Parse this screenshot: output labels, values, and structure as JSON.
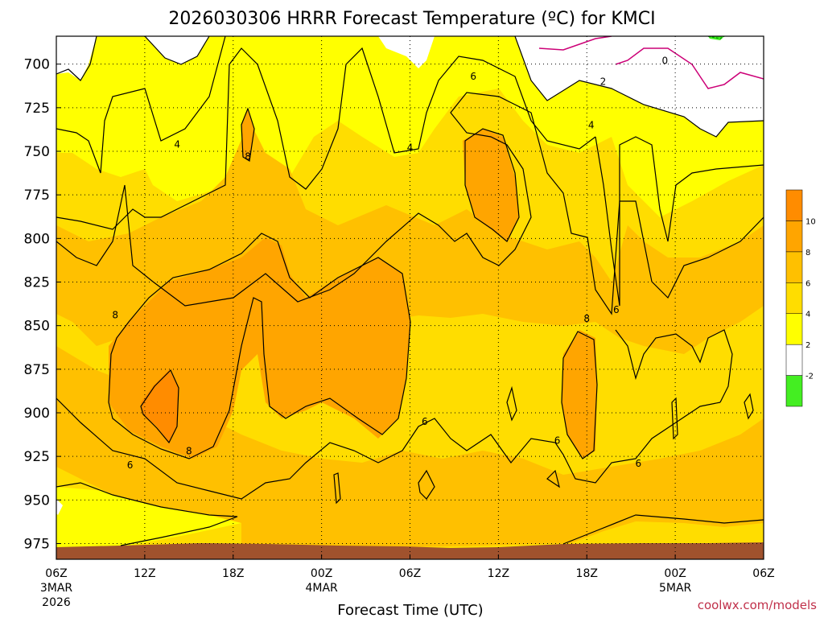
{
  "title": "2026030306 HRRR Forecast Temperature (ºC) for KMCI",
  "credit": "coolwx.com/models",
  "chart_data": {
    "type": "heatmap",
    "title": "2026030306 HRRR Forecast Temperature (ºC) for KMCI",
    "xlabel": "Forecast Time (UTC)",
    "ylabel": "",
    "y_axis": {
      "ticks": [
        700,
        725,
        750,
        775,
        800,
        825,
        850,
        875,
        900,
        925,
        950,
        975
      ],
      "range": [
        684,
        984
      ],
      "inverted": true
    },
    "x_axis": {
      "range_hours": [
        0,
        48
      ],
      "ticks": [
        {
          "hour": 0,
          "label": "06Z",
          "sub1": "3MAR",
          "sub2": "2026"
        },
        {
          "hour": 6,
          "label": "12Z",
          "sub1": "",
          "sub2": ""
        },
        {
          "hour": 12,
          "label": "18Z",
          "sub1": "",
          "sub2": ""
        },
        {
          "hour": 18,
          "label": "00Z",
          "sub1": "4MAR",
          "sub2": ""
        },
        {
          "hour": 24,
          "label": "06Z",
          "sub1": "",
          "sub2": ""
        },
        {
          "hour": 30,
          "label": "12Z",
          "sub1": "",
          "sub2": ""
        },
        {
          "hour": 36,
          "label": "18Z",
          "sub1": "",
          "sub2": ""
        },
        {
          "hour": 42,
          "label": "00Z",
          "sub1": "5MAR",
          "sub2": ""
        },
        {
          "hour": 48,
          "label": "06Z",
          "sub1": "",
          "sub2": ""
        }
      ]
    },
    "grid": true,
    "colorbar": {
      "placement": "right",
      "bins": [
        {
          "from": -4,
          "to": -2,
          "color": "#44ee22"
        },
        {
          "from": -2,
          "to": 2,
          "color": "#ffffff"
        },
        {
          "from": 2,
          "to": 4,
          "color": "#ffff00"
        },
        {
          "from": 4,
          "to": 6,
          "color": "#ffdd00"
        },
        {
          "from": 6,
          "to": 8,
          "color": "#ffc000"
        },
        {
          "from": 8,
          "to": 10,
          "color": "#ffa500"
        },
        {
          "from": 10,
          "to": 12,
          "color": "#ff8c00"
        }
      ],
      "tick_labels": [
        "-2",
        "2",
        "4",
        "6",
        "8",
        "10"
      ]
    },
    "contour_labels": [
      {
        "text": "0",
        "hour": 41.3,
        "p": 698
      },
      {
        "text": "2",
        "hour": 37.1,
        "p": 710
      },
      {
        "text": "4",
        "hour": 8.2,
        "p": 746
      },
      {
        "text": "4",
        "hour": 24.0,
        "p": 748
      },
      {
        "text": "4",
        "hour": 36.3,
        "p": 735
      },
      {
        "text": "6",
        "hour": 28.3,
        "p": 707
      },
      {
        "text": "8",
        "hour": 13.0,
        "p": 753
      },
      {
        "text": "8",
        "hour": 4.0,
        "p": 844
      },
      {
        "text": "8",
        "hour": 9.0,
        "p": 922
      },
      {
        "text": "8",
        "hour": 36.0,
        "p": 846
      },
      {
        "text": "6",
        "hour": 5.0,
        "p": 930
      },
      {
        "text": "6",
        "hour": 25.0,
        "p": 905
      },
      {
        "text": "6",
        "hour": 34.0,
        "p": 916
      },
      {
        "text": "6",
        "hour": 38.0,
        "p": 841
      },
      {
        "text": "6",
        "hour": 39.5,
        "p": 929
      }
    ]
  }
}
